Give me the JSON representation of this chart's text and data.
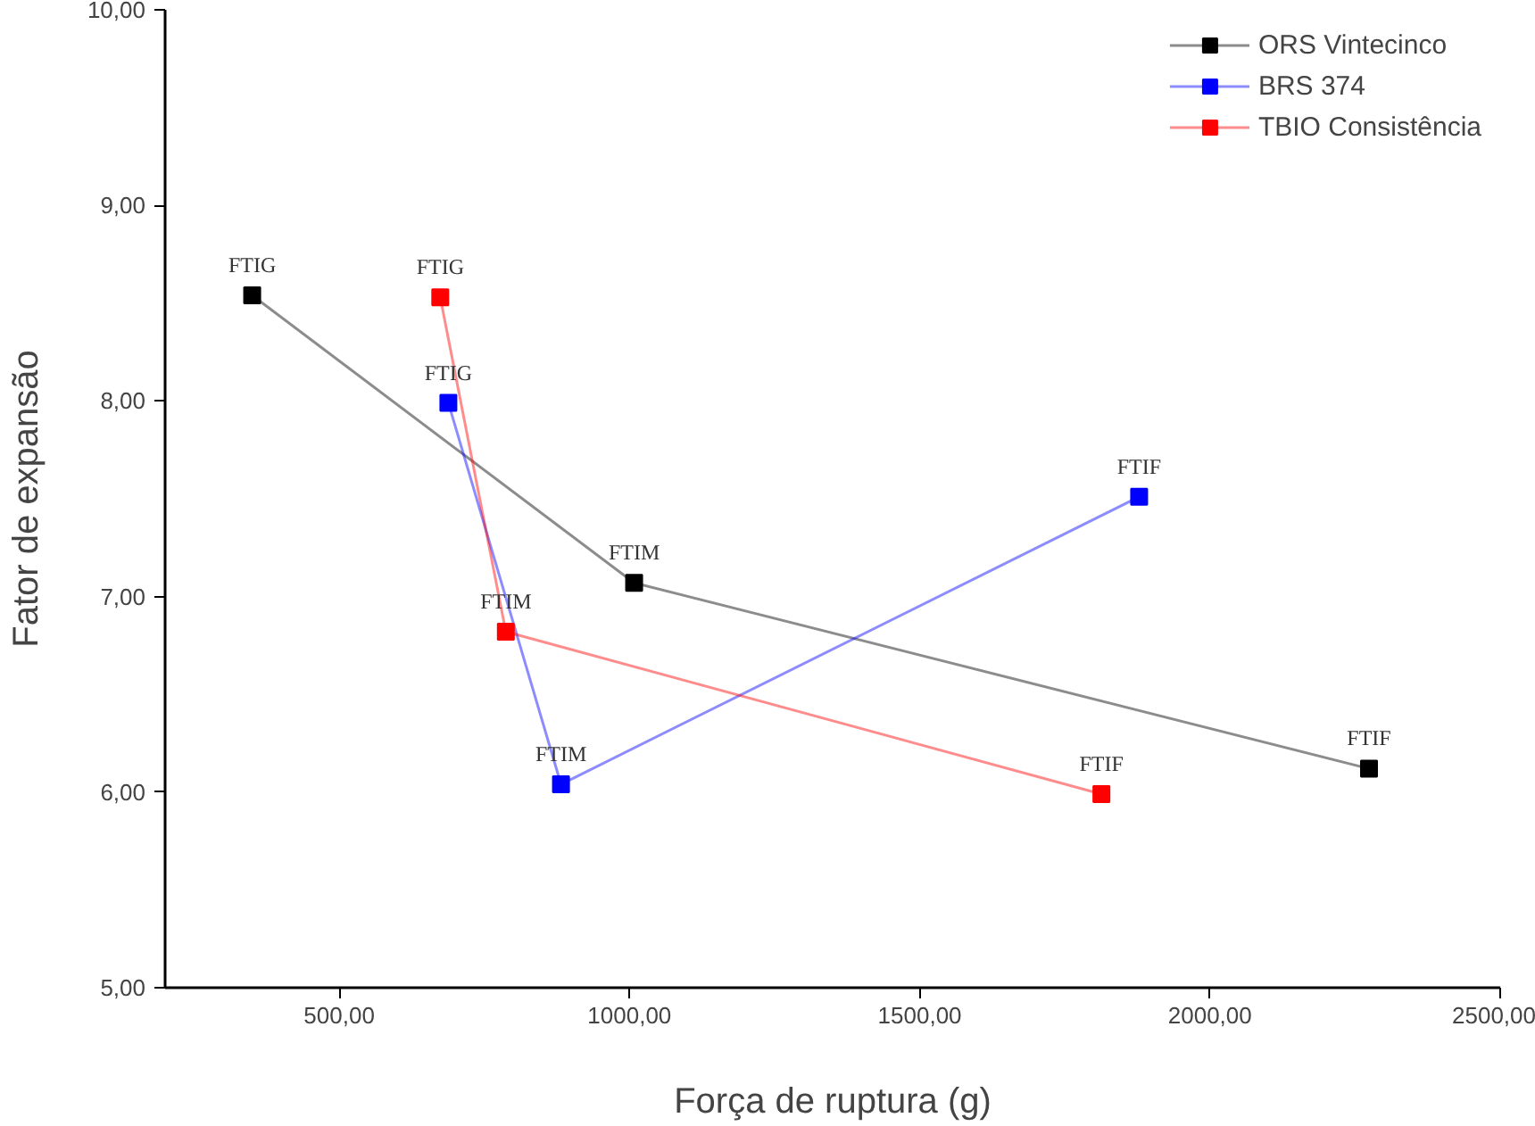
{
  "chart_data": {
    "type": "line",
    "xlabel": "Força de ruptura (g)",
    "ylabel": "Fator de expansão",
    "xlim": [
      200,
      2500
    ],
    "ylim": [
      5,
      10
    ],
    "xticks": [
      {
        "value": 500,
        "label": "500,00"
      },
      {
        "value": 1000,
        "label": "1000,00"
      },
      {
        "value": 1500,
        "label": "1500,00"
      },
      {
        "value": 2000,
        "label": "2000,00"
      },
      {
        "value": 2500,
        "label": "2500,00"
      }
    ],
    "yticks": [
      {
        "value": 5,
        "label": "5,00"
      },
      {
        "value": 6,
        "label": "6,00"
      },
      {
        "value": 7,
        "label": "7,00"
      },
      {
        "value": 8,
        "label": "8,00"
      },
      {
        "value": 9,
        "label": "9,00"
      },
      {
        "value": 10,
        "label": "10,00"
      }
    ],
    "marker": "square",
    "grid": false,
    "legend": "top right",
    "series": [
      {
        "name": "ORS Vintecinco",
        "color": "#000000",
        "x": [
          350,
          1008,
          2274
        ],
        "values": [
          8.54,
          7.07,
          6.12
        ]
      },
      {
        "name": "BRS 374",
        "color": "#0000ff",
        "x": [
          688,
          882,
          1878
        ],
        "values": [
          7.99,
          6.04,
          7.51
        ]
      },
      {
        "name": "TBIO Consistência",
        "color": "#ff0000",
        "x": [
          674,
          787,
          1813
        ],
        "values": [
          8.53,
          6.82,
          5.99
        ]
      }
    ],
    "annotations": [
      {
        "text": "FTIG",
        "x": 350,
        "y": 8.54
      },
      {
        "text": "FTIM",
        "x": 1008,
        "y": 7.07
      },
      {
        "text": "FTIF",
        "x": 2274,
        "y": 6.12
      },
      {
        "text": "FTIG",
        "x": 688,
        "y": 7.99
      },
      {
        "text": "FTIM",
        "x": 882,
        "y": 6.04
      },
      {
        "text": "FTIF",
        "x": 1878,
        "y": 7.51
      },
      {
        "text": "FTIG",
        "x": 674,
        "y": 8.53
      },
      {
        "text": "FTIM",
        "x": 787,
        "y": 6.82
      },
      {
        "text": "FTIF",
        "x": 1813,
        "y": 5.99
      }
    ]
  }
}
